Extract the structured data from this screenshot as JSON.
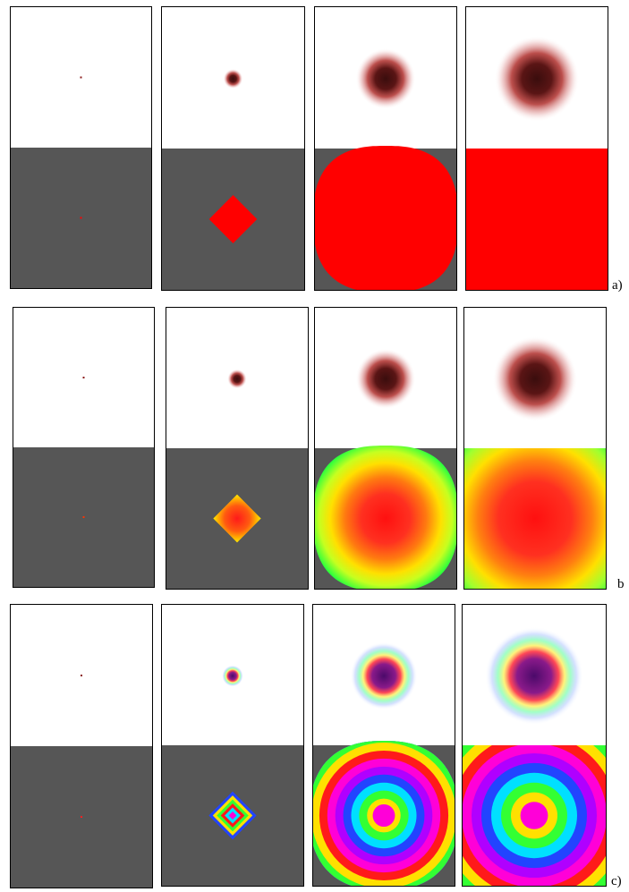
{
  "rows": [
    {
      "id": "a",
      "label": "a)",
      "mode": "solid"
    },
    {
      "id": "b",
      "label": "b",
      "mode": "gradient"
    },
    {
      "id": "c",
      "label": "c)",
      "mode": "rings"
    }
  ],
  "colors": {
    "background_gray": "#565656",
    "top_white": "#ffffff",
    "blob_core": "#3a0d0d",
    "blob_edge": "#b0302d",
    "solid_fill": "#ff0000",
    "rings_center": "#ff00d8",
    "rings_blob_core": "#4b0a6a"
  }
}
